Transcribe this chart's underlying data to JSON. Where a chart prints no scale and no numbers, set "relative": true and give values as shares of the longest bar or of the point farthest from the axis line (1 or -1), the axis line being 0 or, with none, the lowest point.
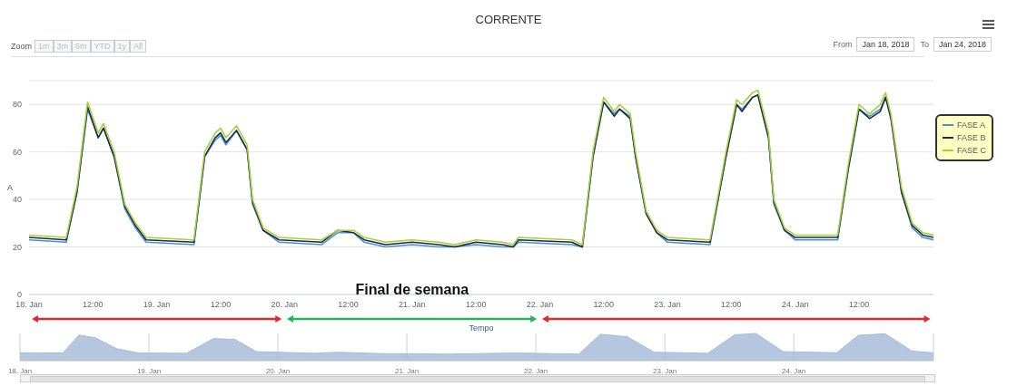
{
  "chart_data": [
    {
      "type": "line",
      "title": "CORRENTE",
      "xlabel": "Tempo",
      "ylabel": "A",
      "annotations": [
        "Zoom",
        "1m",
        "3m",
        "6m",
        "YTD",
        "1y",
        "All",
        "From",
        "Jan 18, 2018",
        "To",
        "Jan 24, 2018",
        "Final de semana"
      ],
      "x": [
        "2018-01-18T00:00",
        "2018-01-18T07:00",
        "2018-01-18T09:00",
        "2018-01-18T11:00",
        "2018-01-18T13:00",
        "2018-01-18T14:00",
        "2018-01-18T16:00",
        "2018-01-18T18:00",
        "2018-01-18T20:00",
        "2018-01-18T22:00",
        "2018-01-19T07:00",
        "2018-01-19T09:00",
        "2018-01-19T11:00",
        "2018-01-19T12:00",
        "2018-01-19T13:00",
        "2018-01-19T15:00",
        "2018-01-19T17:00",
        "2018-01-19T18:00",
        "2018-01-19T20:00",
        "2018-01-19T23:00",
        "2018-01-20T07:00",
        "2018-01-20T10:00",
        "2018-01-20T13:00",
        "2018-01-20T15:00",
        "2018-01-20T19:00",
        "2018-01-21T00:00",
        "2018-01-21T05:00",
        "2018-01-21T08:00",
        "2018-01-21T12:00",
        "2018-01-21T17:00",
        "2018-01-21T19:00",
        "2018-01-21T20:00",
        "2018-01-22T06:00",
        "2018-01-22T08:00",
        "2018-01-22T10:00",
        "2018-01-22T12:00",
        "2018-01-22T14:00",
        "2018-01-22T15:00",
        "2018-01-22T17:00",
        "2018-01-22T18:00",
        "2018-01-22T20:00",
        "2018-01-22T22:00",
        "2018-01-23T00:00",
        "2018-01-23T08:00",
        "2018-01-23T11:00",
        "2018-01-23T13:00",
        "2018-01-23T14:00",
        "2018-01-23T16:00",
        "2018-01-23T17:00",
        "2018-01-23T19:00",
        "2018-01-23T20:00",
        "2018-01-23T22:00",
        "2018-01-24T00:00",
        "2018-01-24T08:00",
        "2018-01-24T10:00",
        "2018-01-24T12:00",
        "2018-01-24T14:00",
        "2018-01-24T16:00",
        "2018-01-24T17:00",
        "2018-01-24T18:00",
        "2018-01-24T20:00",
        "2018-01-24T22:00",
        "2018-01-25T00:00",
        "2018-01-25T02:00"
      ],
      "series": [
        {
          "name": "FASE A",
          "color": "#4a90d9",
          "values": [
            23,
            22,
            43,
            78,
            66,
            70,
            58,
            36,
            28,
            22,
            21,
            58,
            65,
            67,
            63,
            69,
            61,
            38,
            27,
            22,
            21,
            26,
            26,
            22,
            20,
            21,
            20,
            20,
            21,
            20,
            20,
            22,
            21,
            20,
            58,
            81,
            76,
            78,
            75,
            58,
            34,
            26,
            22,
            21,
            58,
            80,
            78,
            83,
            84,
            66,
            38,
            27,
            23,
            23,
            53,
            78,
            75,
            78,
            83,
            75,
            43,
            28,
            24,
            23
          ]
        },
        {
          "name": "FASE B",
          "color": "#1f2a44",
          "values": [
            24,
            23,
            43,
            79,
            66,
            70,
            58,
            37,
            29,
            23,
            22,
            58,
            66,
            68,
            64,
            69,
            61,
            39,
            27,
            23,
            22,
            27,
            26,
            23,
            21,
            22,
            21,
            20,
            22,
            21,
            20,
            23,
            22,
            20,
            58,
            81,
            75,
            78,
            74,
            58,
            34,
            26,
            23,
            22,
            58,
            80,
            77,
            83,
            84,
            66,
            39,
            27,
            24,
            24,
            53,
            78,
            74,
            77,
            83,
            74,
            43,
            29,
            25,
            24
          ]
        },
        {
          "name": "FASE C",
          "color": "#a6d13a",
          "values": [
            25,
            24,
            45,
            81,
            68,
            72,
            60,
            38,
            30,
            24,
            23,
            60,
            68,
            70,
            66,
            71,
            63,
            40,
            28,
            24,
            23,
            27,
            27,
            24,
            22,
            23,
            22,
            21,
            23,
            22,
            21,
            24,
            23,
            21,
            60,
            83,
            77,
            80,
            76,
            60,
            35,
            27,
            24,
            23,
            60,
            82,
            80,
            85,
            86,
            68,
            40,
            28,
            25,
            25,
            55,
            80,
            76,
            80,
            85,
            76,
            45,
            30,
            26,
            25
          ]
        }
      ],
      "xlim": [
        "2018-01-18T00:00",
        "2018-01-25T02:00"
      ],
      "xticks": [
        {
          "value": "2018-01-18T00:00",
          "label": "18. Jan"
        },
        {
          "value": "2018-01-18T12:00",
          "label": "12:00"
        },
        {
          "value": "2018-01-19T00:00",
          "label": "19. Jan"
        },
        {
          "value": "2018-01-19T12:00",
          "label": "12:00"
        },
        {
          "value": "2018-01-20T00:00",
          "label": "20. Jan"
        },
        {
          "value": "2018-01-20T12:00",
          "label": "12:00"
        },
        {
          "value": "2018-01-21T00:00",
          "label": "21. Jan"
        },
        {
          "value": "2018-01-21T12:00",
          "label": "12:00"
        },
        {
          "value": "2018-01-22T00:00",
          "label": "22. Jan"
        },
        {
          "value": "2018-01-22T12:00",
          "label": "12:00"
        },
        {
          "value": "2018-01-23T00:00",
          "label": "23. Jan"
        },
        {
          "value": "2018-01-23T12:00",
          "label": "12:00"
        },
        {
          "value": "2018-01-24T00:00",
          "label": "24. Jan"
        },
        {
          "value": "2018-01-24T12:00",
          "label": "12:00"
        }
      ],
      "ylim": [
        0,
        90
      ],
      "yticks": [
        0,
        20,
        40,
        60,
        80
      ],
      "grid": "y",
      "legend": "right",
      "marker": "none",
      "line_style": "solid"
    },
    {
      "type": "area",
      "relative": true,
      "x": [
        "2018-01-18T00:00",
        "2018-01-18T08:00",
        "2018-01-18T11:00",
        "2018-01-18T14:00",
        "2018-01-18T18:00",
        "2018-01-18T22:00",
        "2018-01-19T07:00",
        "2018-01-19T12:00",
        "2018-01-19T16:00",
        "2018-01-19T20:00",
        "2018-01-20T07:00",
        "2018-01-20T11:00",
        "2018-01-20T19:00",
        "2018-01-21T08:00",
        "2018-01-21T20:00",
        "2018-01-22T08:00",
        "2018-01-22T12:00",
        "2018-01-22T17:00",
        "2018-01-22T22:00",
        "2018-01-23T08:00",
        "2018-01-23T13:00",
        "2018-01-23T17:00",
        "2018-01-23T22:00",
        "2018-01-24T08:00",
        "2018-01-24T12:00",
        "2018-01-24T17:00",
        "2018-01-24T22:00",
        "2018-01-25T02:00"
      ],
      "series": [
        {
          "color": "#a8bcd9",
          "values": [
            0.29,
            0.28,
            0.94,
            0.84,
            0.44,
            0.28,
            0.27,
            0.81,
            0.78,
            0.33,
            0.27,
            0.31,
            0.26,
            0.24,
            0.28,
            0.24,
            0.97,
            0.88,
            0.31,
            0.27,
            0.95,
            1,
            0.33,
            0.29,
            0.93,
            0.99,
            0.35,
            0.29
          ]
        }
      ],
      "xlim": [
        "2018-01-18T00:00",
        "2018-01-25T02:00"
      ],
      "xticks": [
        {
          "value": "2018-01-18T00:00",
          "label": "18. Jan"
        },
        {
          "value": "2018-01-19T00:00",
          "label": "19. Jan"
        },
        {
          "value": "2018-01-20T00:00",
          "label": "20. Jan"
        },
        {
          "value": "2018-01-21T00:00",
          "label": "21. Jan"
        },
        {
          "value": "2018-01-22T00:00",
          "label": "22. Jan"
        },
        {
          "value": "2018-01-23T00:00",
          "label": "23. Jan"
        },
        {
          "value": "2018-01-24T00:00",
          "label": "24. Jan"
        }
      ],
      "grid": "x"
    }
  ]
}
